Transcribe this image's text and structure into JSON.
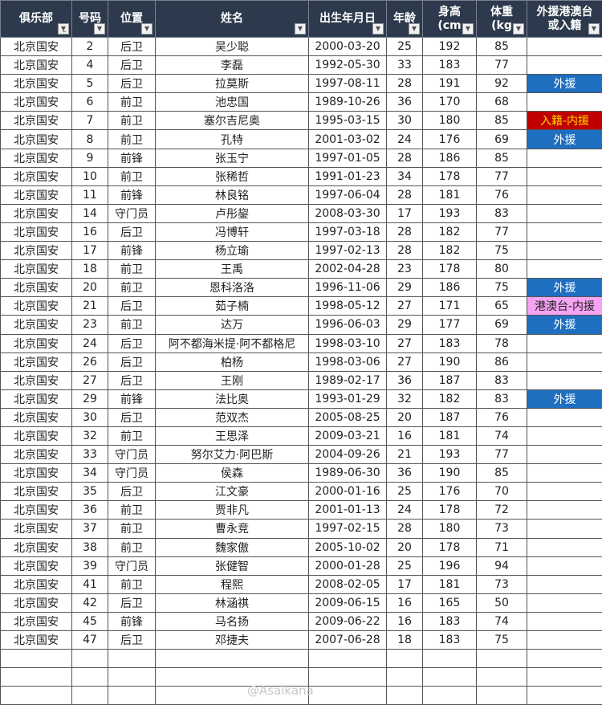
{
  "headers": [
    "俱乐部",
    "号码",
    "位置",
    "姓名",
    "出生年月日",
    "年龄",
    "身高\n(cm",
    "体重\n(kg",
    "外援港澳台\n或入籍"
  ],
  "colors": {
    "header_bg": "#2d3a4d",
    "foreign": "#1f6fc0",
    "naturalized": "#c00000",
    "hk_macau_tw": "#f5a3f2"
  },
  "rows": [
    [
      "北京国安",
      "2",
      "后卫",
      "吴少聪",
      "2000-03-20",
      "25",
      "192",
      "85",
      ""
    ],
    [
      "北京国安",
      "4",
      "后卫",
      "李磊",
      "1992-05-30",
      "33",
      "183",
      "77",
      ""
    ],
    [
      "北京国安",
      "5",
      "后卫",
      "拉莫斯",
      "1997-08-11",
      "28",
      "191",
      "92",
      "外援"
    ],
    [
      "北京国安",
      "6",
      "前卫",
      "池忠国",
      "1989-10-26",
      "36",
      "170",
      "68",
      ""
    ],
    [
      "北京国安",
      "7",
      "前卫",
      "塞尔吉尼奥",
      "1995-03-15",
      "30",
      "180",
      "85",
      "入籍-内援"
    ],
    [
      "北京国安",
      "8",
      "前卫",
      "孔特",
      "2001-03-02",
      "24",
      "176",
      "69",
      "外援"
    ],
    [
      "北京国安",
      "9",
      "前锋",
      "张玉宁",
      "1997-01-05",
      "28",
      "186",
      "85",
      ""
    ],
    [
      "北京国安",
      "10",
      "前卫",
      "张稀哲",
      "1991-01-23",
      "34",
      "178",
      "77",
      ""
    ],
    [
      "北京国安",
      "11",
      "前锋",
      "林良铭",
      "1997-06-04",
      "28",
      "181",
      "76",
      ""
    ],
    [
      "北京国安",
      "14",
      "守门员",
      "卢彤鋆",
      "2008-03-30",
      "17",
      "193",
      "83",
      ""
    ],
    [
      "北京国安",
      "16",
      "后卫",
      "冯博轩",
      "1997-03-18",
      "28",
      "182",
      "77",
      ""
    ],
    [
      "北京国安",
      "17",
      "前锋",
      "杨立瑜",
      "1997-02-13",
      "28",
      "182",
      "75",
      ""
    ],
    [
      "北京国安",
      "18",
      "前卫",
      "王禹",
      "2002-04-28",
      "23",
      "178",
      "80",
      ""
    ],
    [
      "北京国安",
      "20",
      "前卫",
      "恩科洛洛",
      "1996-11-06",
      "29",
      "186",
      "75",
      "外援"
    ],
    [
      "北京国安",
      "21",
      "后卫",
      "茹子楠",
      "1998-05-12",
      "27",
      "171",
      "65",
      "港澳台-内援"
    ],
    [
      "北京国安",
      "23",
      "前卫",
      "达万",
      "1996-06-03",
      "29",
      "177",
      "69",
      "外援"
    ],
    [
      "北京国安",
      "24",
      "后卫",
      "阿不都海米提·阿不都格尼",
      "1998-03-10",
      "27",
      "183",
      "78",
      ""
    ],
    [
      "北京国安",
      "26",
      "后卫",
      "柏杨",
      "1998-03-06",
      "27",
      "190",
      "86",
      ""
    ],
    [
      "北京国安",
      "27",
      "后卫",
      "王刚",
      "1989-02-17",
      "36",
      "187",
      "83",
      ""
    ],
    [
      "北京国安",
      "29",
      "前锋",
      "法比奥",
      "1993-01-29",
      "32",
      "182",
      "83",
      "外援"
    ],
    [
      "北京国安",
      "30",
      "后卫",
      "范双杰",
      "2005-08-25",
      "20",
      "187",
      "76",
      ""
    ],
    [
      "北京国安",
      "32",
      "前卫",
      "王思泽",
      "2009-03-21",
      "16",
      "181",
      "74",
      ""
    ],
    [
      "北京国安",
      "33",
      "守门员",
      "努尔艾力·阿巴斯",
      "2004-09-26",
      "21",
      "193",
      "77",
      ""
    ],
    [
      "北京国安",
      "34",
      "守门员",
      "侯森",
      "1989-06-30",
      "36",
      "190",
      "85",
      ""
    ],
    [
      "北京国安",
      "35",
      "后卫",
      "江文豪",
      "2000-01-16",
      "25",
      "176",
      "70",
      ""
    ],
    [
      "北京国安",
      "36",
      "前卫",
      "贾非凡",
      "2001-01-13",
      "24",
      "178",
      "72",
      ""
    ],
    [
      "北京国安",
      "37",
      "前卫",
      "曹永竞",
      "1997-02-15",
      "28",
      "180",
      "73",
      ""
    ],
    [
      "北京国安",
      "38",
      "前卫",
      "魏家傲",
      "2005-10-02",
      "20",
      "178",
      "71",
      ""
    ],
    [
      "北京国安",
      "39",
      "守门员",
      "张健智",
      "2000-01-28",
      "25",
      "196",
      "94",
      ""
    ],
    [
      "北京国安",
      "41",
      "前卫",
      "程熙",
      "2008-02-05",
      "17",
      "181",
      "73",
      ""
    ],
    [
      "北京国安",
      "42",
      "后卫",
      "林涵祺",
      "2009-06-15",
      "16",
      "165",
      "50",
      ""
    ],
    [
      "北京国安",
      "45",
      "前锋",
      "马名扬",
      "2009-06-22",
      "16",
      "183",
      "74",
      ""
    ],
    [
      "北京国安",
      "47",
      "后卫",
      "邓捷夫",
      "2007-06-28",
      "18",
      "183",
      "75",
      ""
    ]
  ],
  "watermark": "@Asaikana"
}
